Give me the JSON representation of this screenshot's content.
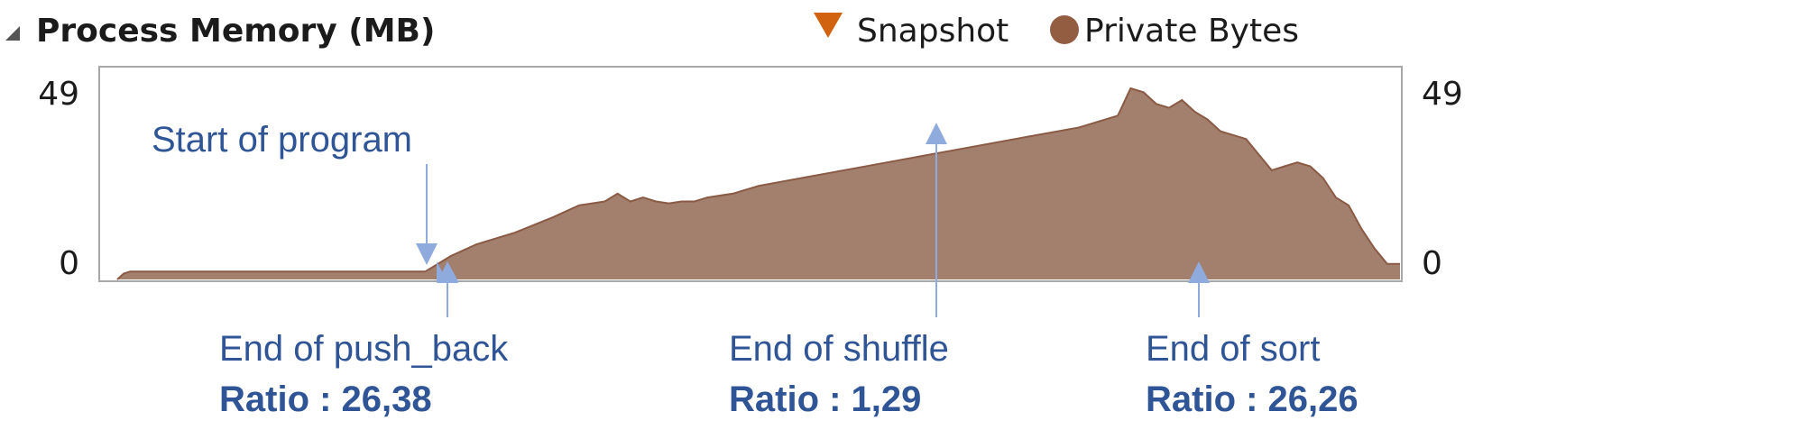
{
  "chart_data": {
    "type": "area",
    "title": "Process Memory (MB)",
    "legend": {
      "position": "top-center",
      "entries": [
        {
          "name": "Snapshot",
          "marker": "triangle-down",
          "color": "#d1620f"
        },
        {
          "name": "Private Bytes",
          "marker": "circle",
          "color": "#935d42"
        }
      ]
    },
    "ylim": [
      0,
      49
    ],
    "yticks_left": [
      {
        "value": 49,
        "label": "49"
      },
      {
        "value": 0,
        "label": "0"
      }
    ],
    "yticks_right": [
      {
        "value": 49,
        "label": "49"
      },
      {
        "value": 0,
        "label": "0"
      }
    ],
    "xlim": [
      0,
      100
    ],
    "grid": false,
    "fill_color": "#a37f6e",
    "line_color": "#8a5a44",
    "series": [
      {
        "name": "Private Bytes",
        "x": [
          0,
          0.5,
          1,
          24,
          25,
          26,
          28,
          31,
          34,
          36,
          38,
          39,
          40,
          41,
          42,
          43,
          44,
          45,
          46,
          48,
          50,
          55,
          60,
          65,
          70,
          75,
          78,
          79,
          80,
          81,
          82,
          83,
          84,
          85,
          86,
          88,
          89,
          90,
          91,
          92,
          93,
          94,
          95,
          96,
          97,
          98,
          99,
          100
        ],
        "y": [
          0,
          1.5,
          2,
          2,
          4,
          6,
          9,
          12,
          16,
          19,
          20,
          22,
          20,
          21,
          20,
          19.5,
          20,
          20,
          21,
          22,
          24,
          27,
          30,
          33,
          36,
          39,
          42,
          49,
          48,
          45,
          44,
          46,
          43,
          41,
          38,
          36,
          32,
          28,
          29,
          30,
          29,
          26,
          21,
          19,
          13,
          8,
          4,
          4
        ]
      }
    ],
    "annotations": [
      {
        "label": "Start of program",
        "ratio": "",
        "x": 24,
        "style": "down-arrow"
      },
      {
        "label": "End of push_back",
        "ratio": "Ratio : 26,38",
        "x": 25,
        "style": "up-marker"
      },
      {
        "label": "End of shuffle",
        "ratio": "Ratio : 1,29",
        "x": 64.5,
        "style": "up-marker"
      },
      {
        "label": "End of sort",
        "ratio": "Ratio :  26,26",
        "x": 84.5,
        "style": "up-marker"
      }
    ]
  }
}
